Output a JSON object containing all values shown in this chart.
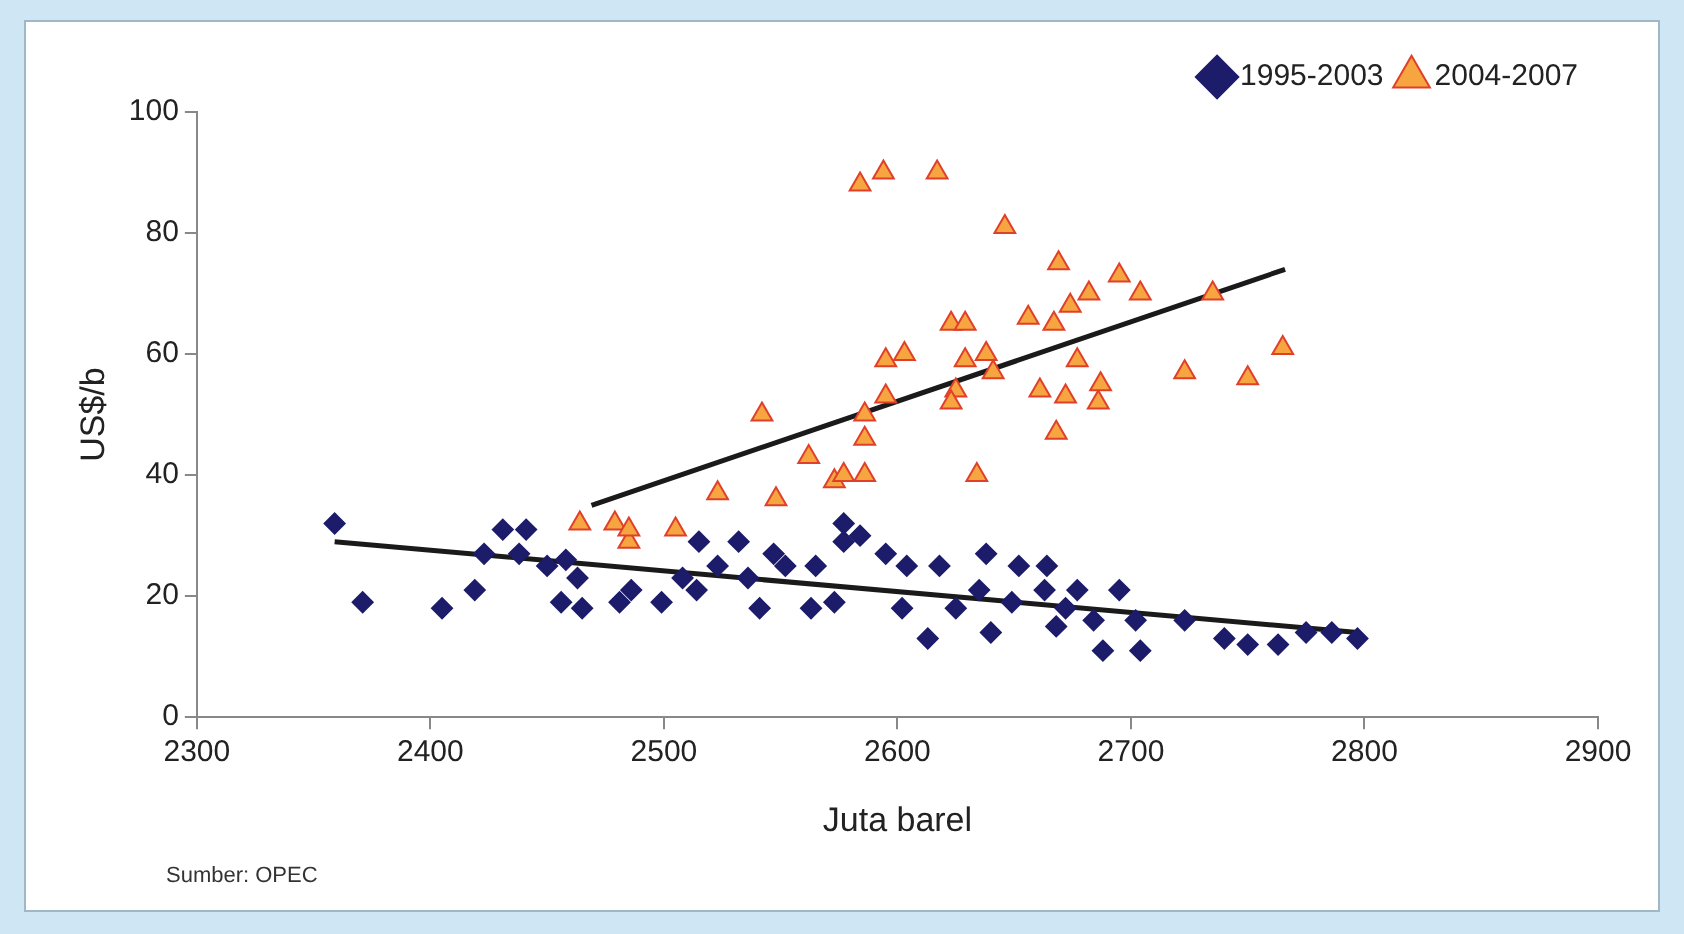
{
  "chart_data": {
    "type": "scatter",
    "xlabel": "Juta barel",
    "ylabel": "US$/b",
    "xlim": [
      2300,
      2900
    ],
    "xticks": [
      2300,
      2400,
      2500,
      2600,
      2700,
      2800,
      2900
    ],
    "ylim": [
      0,
      100
    ],
    "yticks": [
      0,
      20,
      40,
      60,
      80,
      100
    ],
    "grid": false,
    "legend": "top right",
    "annotations": [
      "Sumber: OPEC"
    ],
    "series": [
      {
        "name": "1995-2003",
        "color": "#1c1c6b",
        "marker": "diamond",
        "x": [
          2359,
          2371,
          2405,
          2419,
          2423,
          2431,
          2441,
          2438,
          2450,
          2458,
          2463,
          2456,
          2465,
          2481,
          2486,
          2499,
          2508,
          2515,
          2514,
          2523,
          2532,
          2536,
          2541,
          2547,
          2552,
          2563,
          2565,
          2573,
          2577,
          2577,
          2584,
          2602,
          2595,
          2604,
          2613,
          2618,
          2625,
          2638,
          2635,
          2640,
          2652,
          2649,
          2664,
          2663,
          2672,
          2668,
          2677,
          2684,
          2688,
          2695,
          2704,
          2702,
          2723,
          2740,
          2750,
          2763,
          2775,
          2786,
          2797
        ],
        "values": [
          32,
          19,
          18,
          21,
          27,
          31,
          31,
          27,
          25,
          26,
          23,
          19,
          18,
          19,
          21,
          19,
          23,
          29,
          21,
          25,
          29,
          23,
          18,
          27,
          25,
          18,
          25,
          19,
          29,
          32,
          30,
          18,
          27,
          25,
          13,
          25,
          18,
          27,
          21,
          14,
          25,
          19,
          25,
          21,
          18,
          15,
          21,
          16,
          11,
          21,
          11,
          16,
          16,
          13,
          12,
          12,
          14,
          14,
          13
        ]
      },
      {
        "name": "2004-2007",
        "color": "#f7a541",
        "marker": "triangle",
        "x": [
          2464,
          2479,
          2485,
          2485,
          2505,
          2523,
          2548,
          2542,
          2562,
          2573,
          2577,
          2586,
          2586,
          2586,
          2595,
          2595,
          2603,
          2584,
          2594,
          2617,
          2623,
          2625,
          2623,
          2629,
          2629,
          2634,
          2638,
          2641,
          2646,
          2656,
          2661,
          2667,
          2668,
          2669,
          2672,
          2674,
          2677,
          2682,
          2686,
          2687,
          2695,
          2704,
          2723,
          2735,
          2750,
          2765
        ],
        "values": [
          32,
          32,
          29,
          31,
          31,
          37,
          36,
          50,
          43,
          39,
          40,
          40,
          46,
          50,
          53,
          59,
          60,
          88,
          90,
          90,
          65,
          54,
          52,
          65,
          59,
          40,
          60,
          57,
          81,
          66,
          54,
          65,
          47,
          75,
          53,
          68,
          59,
          70,
          52,
          55,
          73,
          70,
          57,
          70,
          56,
          61
        ]
      },
      {
        "type": "line",
        "color": "#1a1a1a",
        "marker": "none",
        "x": [
          2359,
          2797
        ],
        "values": [
          29,
          14
        ]
      },
      {
        "type": "line",
        "color": "#1a1a1a",
        "marker": "none",
        "x": [
          2469,
          2766
        ],
        "values": [
          35,
          74
        ]
      }
    ]
  }
}
